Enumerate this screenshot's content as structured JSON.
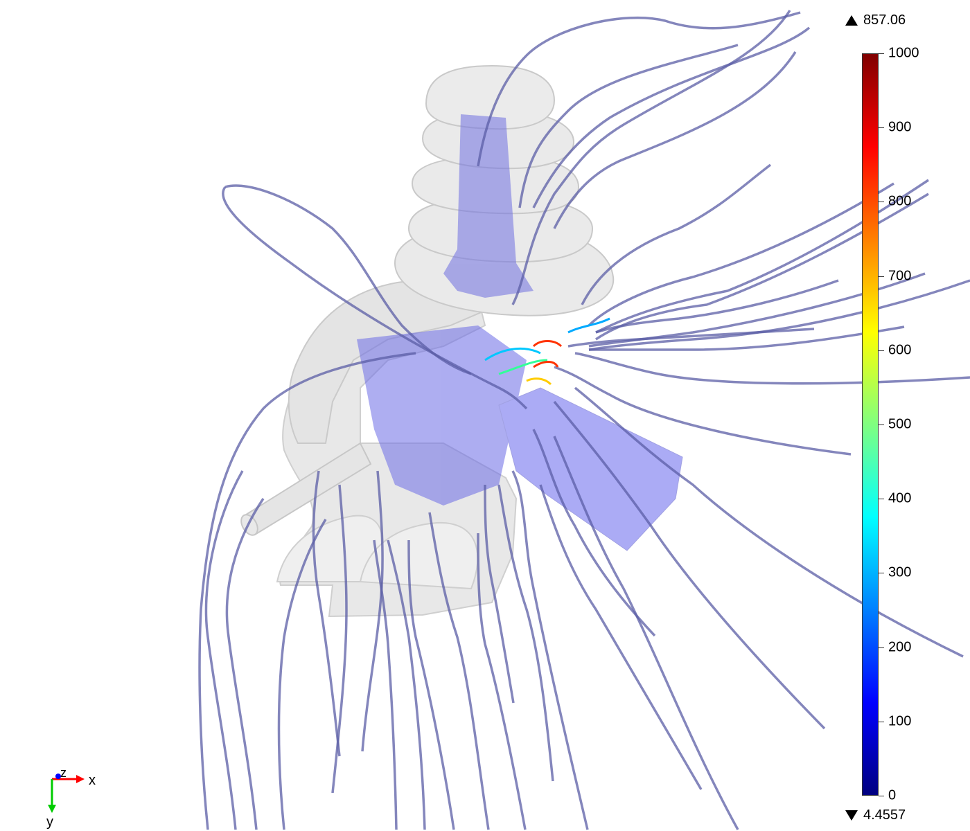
{
  "colorbar": {
    "max_label": "857.06",
    "min_label": "4.4557",
    "ticks": [
      "1000",
      "900",
      "800",
      "700",
      "600",
      "500",
      "400",
      "300",
      "200",
      "100",
      "0"
    ],
    "range": [
      0,
      1000
    ],
    "colormap": [
      "#800000",
      "#ff0000",
      "#ff8000",
      "#ffff00",
      "#80ff80",
      "#00ffff",
      "#0080ff",
      "#0000ff",
      "#000080"
    ]
  },
  "axes": {
    "x": "x",
    "y": "y",
    "z": "z"
  },
  "colors": {
    "streamline": "#5b5ea6",
    "geometry": "#c8c8c8",
    "inner_volume": "#6a6ae6",
    "x_axis": "#ff0000",
    "y_axis": "#00cc00",
    "z_axis": "#0000ff"
  }
}
